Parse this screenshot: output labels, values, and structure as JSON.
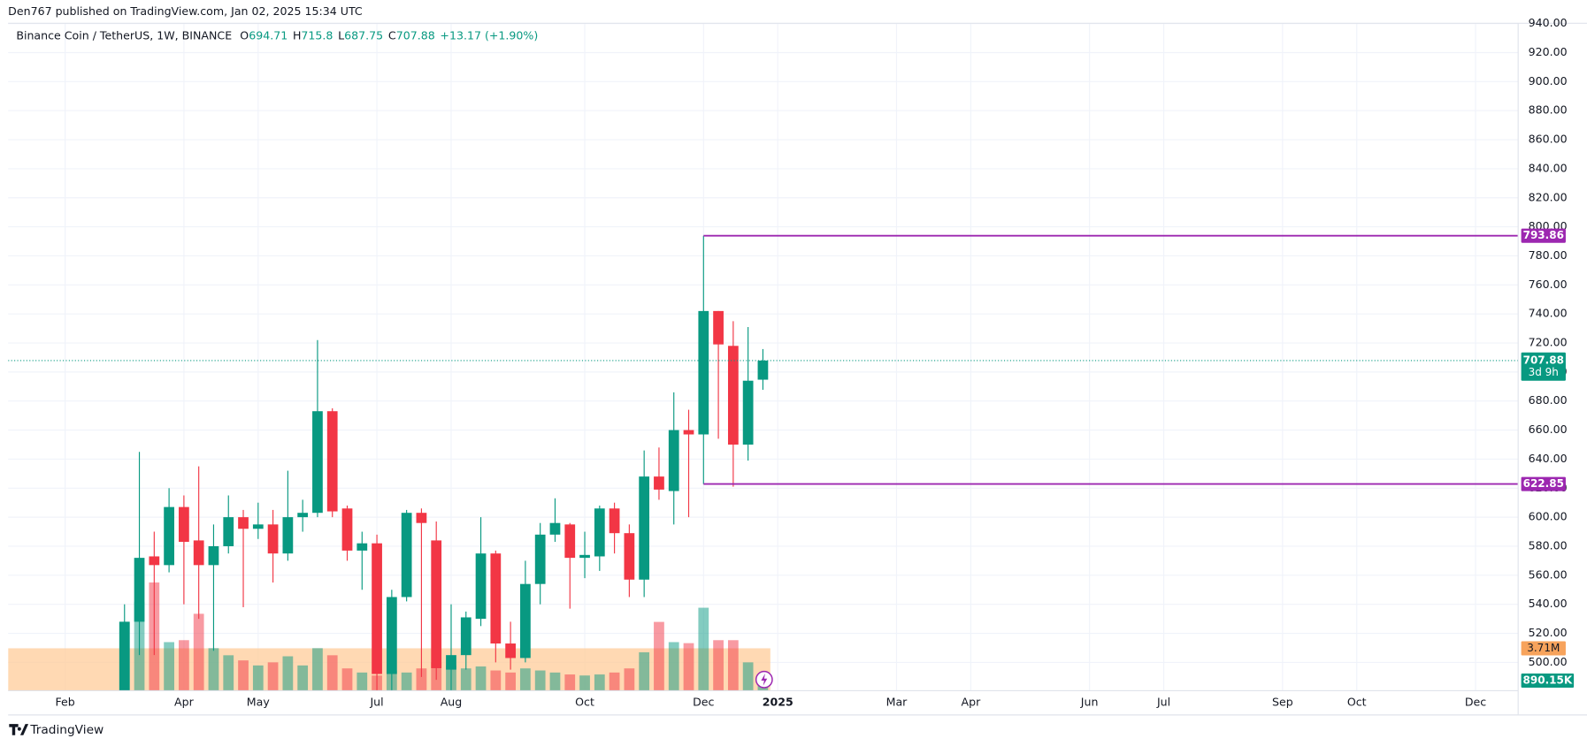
{
  "chart_data": {
    "type": "candlestick",
    "published": "Den767 published on TradingView.com, Jan 02, 2025 15:34 UTC",
    "symbol": "Binance Coin / TetherUS, 1W, BINANCE",
    "ohlc": [
      {
        "label": "O",
        "value": 694.71
      },
      {
        "label": "H",
        "value": 715.8
      },
      {
        "label": "L",
        "value": 687.75
      },
      {
        "label": "C",
        "value": 707.88
      }
    ],
    "change": "+13.17 (+1.90%)",
    "x": [
      0,
      1,
      2,
      3,
      4,
      5,
      6,
      7,
      8,
      9,
      10,
      11,
      12,
      13,
      14,
      15,
      16,
      17,
      18,
      19,
      20,
      21,
      22,
      23,
      24,
      25,
      26,
      27,
      28,
      29,
      30,
      31,
      32,
      33,
      34,
      35,
      36,
      37,
      38,
      39,
      40,
      41,
      42,
      43
    ],
    "open": [
      480,
      528,
      573,
      567,
      607,
      584,
      567,
      580,
      600,
      592,
      595,
      575,
      600,
      603,
      673,
      606,
      577,
      582,
      492,
      545,
      603,
      584,
      495,
      505,
      530,
      575,
      513,
      503,
      554,
      588,
      595,
      572,
      573,
      606,
      589,
      557,
      628,
      618,
      660,
      657,
      742,
      718,
      650,
      694.71
    ],
    "high": [
      540,
      645,
      590,
      620,
      615,
      635,
      595,
      615,
      605,
      610,
      605,
      632,
      612,
      722,
      675,
      608,
      590,
      588,
      550,
      605,
      606,
      597,
      540,
      535,
      600,
      577,
      528,
      570,
      596,
      613,
      596,
      590,
      608,
      610,
      595,
      646,
      648,
      686,
      674,
      793.86,
      742,
      735,
      731,
      715.8
    ],
    "low": [
      478,
      505,
      505,
      562,
      540,
      530,
      508,
      575,
      538,
      585,
      555,
      570,
      590,
      600,
      600,
      570,
      550,
      475,
      475,
      542,
      490,
      488,
      478,
      495,
      525,
      500,
      495,
      500,
      540,
      583,
      537,
      558,
      563,
      575,
      545,
      545,
      612,
      595,
      600,
      622.85,
      654,
      621,
      639,
      687.75
    ],
    "close": [
      528,
      572,
      567,
      607,
      583,
      567,
      580,
      600,
      592,
      595,
      575,
      600,
      603,
      673,
      604,
      577,
      582,
      492,
      545,
      603,
      596,
      496,
      505,
      531,
      575,
      513,
      503,
      554,
      588,
      596,
      572,
      574,
      606,
      589,
      557,
      628,
      619,
      660,
      657,
      742,
      719,
      650,
      694,
      707.88
    ],
    "volume": [
      6.02,
      7.79,
      9.47,
      4.25,
      4.42,
      6.73,
      3.72,
      3.1,
      2.65,
      2.21,
      2.48,
      3.01,
      2.21,
      3.72,
      3.1,
      1.95,
      1.59,
      1.33,
      1.77,
      1.59,
      1.95,
      2.48,
      2.21,
      1.95,
      2.12,
      1.77,
      1.59,
      1.95,
      1.77,
      1.59,
      1.42,
      1.33,
      1.42,
      1.59,
      1.95,
      3.36,
      6.02,
      4.25,
      4.16,
      7.26,
      4.42,
      4.42,
      2.48,
      0.89015
    ],
    "volume_value_labels": [
      null,
      null,
      null,
      null,
      null,
      null,
      null,
      null,
      null,
      null,
      null,
      null,
      null,
      null,
      null,
      null,
      null,
      null,
      null,
      null,
      null,
      null,
      null,
      null,
      null,
      null,
      null,
      null,
      null,
      null,
      null,
      null,
      null,
      null,
      null,
      null,
      null,
      null,
      null,
      null,
      null,
      null,
      null,
      "890.15K"
    ],
    "volume_ma": {
      "value": 3.71,
      "label": "3.71M",
      "color": "#ffcc99"
    },
    "up_color": "#089981",
    "down_color": "#f23645",
    "levels": [
      {
        "value": 793.86,
        "from": 39,
        "color": "#9c27b0"
      },
      {
        "value": 622.85,
        "from": 39,
        "color": "#9c27b0"
      }
    ],
    "last_price": {
      "value": 707.88,
      "countdown": "3d 9h"
    },
    "ylim": [
      480.5,
      940.2
    ],
    "yticks": [
      {
        "value": 500,
        "label": "500.00"
      },
      {
        "value": 520,
        "label": "520.00"
      },
      {
        "value": 540,
        "label": "540.00"
      },
      {
        "value": 560,
        "label": "560.00"
      },
      {
        "value": 580,
        "label": "580.00"
      },
      {
        "value": 600,
        "label": "600.00"
      },
      {
        "value": 620,
        "label": "620.00"
      },
      {
        "value": 640,
        "label": "640.00"
      },
      {
        "value": 660,
        "label": "660.00"
      },
      {
        "value": 680,
        "label": "680.00"
      },
      {
        "value": 700,
        "label": "700.00"
      },
      {
        "value": 720,
        "label": "720.00"
      },
      {
        "value": 740,
        "label": "740.00"
      },
      {
        "value": 760,
        "label": "760.00"
      },
      {
        "value": 780,
        "label": "780.00"
      },
      {
        "value": 800,
        "label": "800.00"
      },
      {
        "value": 820,
        "label": "820.00"
      },
      {
        "value": 840,
        "label": "840.00"
      },
      {
        "value": 860,
        "label": "860.00"
      },
      {
        "value": 880,
        "label": "880.00"
      },
      {
        "value": 900,
        "label": "900.00"
      },
      {
        "value": 920,
        "label": "920.00"
      },
      {
        "value": 940,
        "label": "940.00"
      }
    ],
    "xlim": [
      -7.84,
      93.87
    ],
    "xticks": [
      {
        "value": -4,
        "label": "Feb"
      },
      {
        "value": 4,
        "label": "Apr"
      },
      {
        "value": 9,
        "label": "May"
      },
      {
        "value": 17,
        "label": "Jul"
      },
      {
        "value": 22,
        "label": "Aug"
      },
      {
        "value": 31,
        "label": "Oct"
      },
      {
        "value": 39,
        "label": "Dec"
      },
      {
        "value": 44,
        "label": "2025"
      },
      {
        "value": 52,
        "label": "Mar"
      },
      {
        "value": 57,
        "label": "Apr"
      },
      {
        "value": 65,
        "label": "Jun"
      },
      {
        "value": 70,
        "label": "Jul"
      },
      {
        "value": 78,
        "label": "Sep"
      },
      {
        "value": 83,
        "label": "Oct"
      },
      {
        "value": 91,
        "label": "Dec"
      }
    ],
    "grid": true,
    "brand": "TradingView"
  }
}
